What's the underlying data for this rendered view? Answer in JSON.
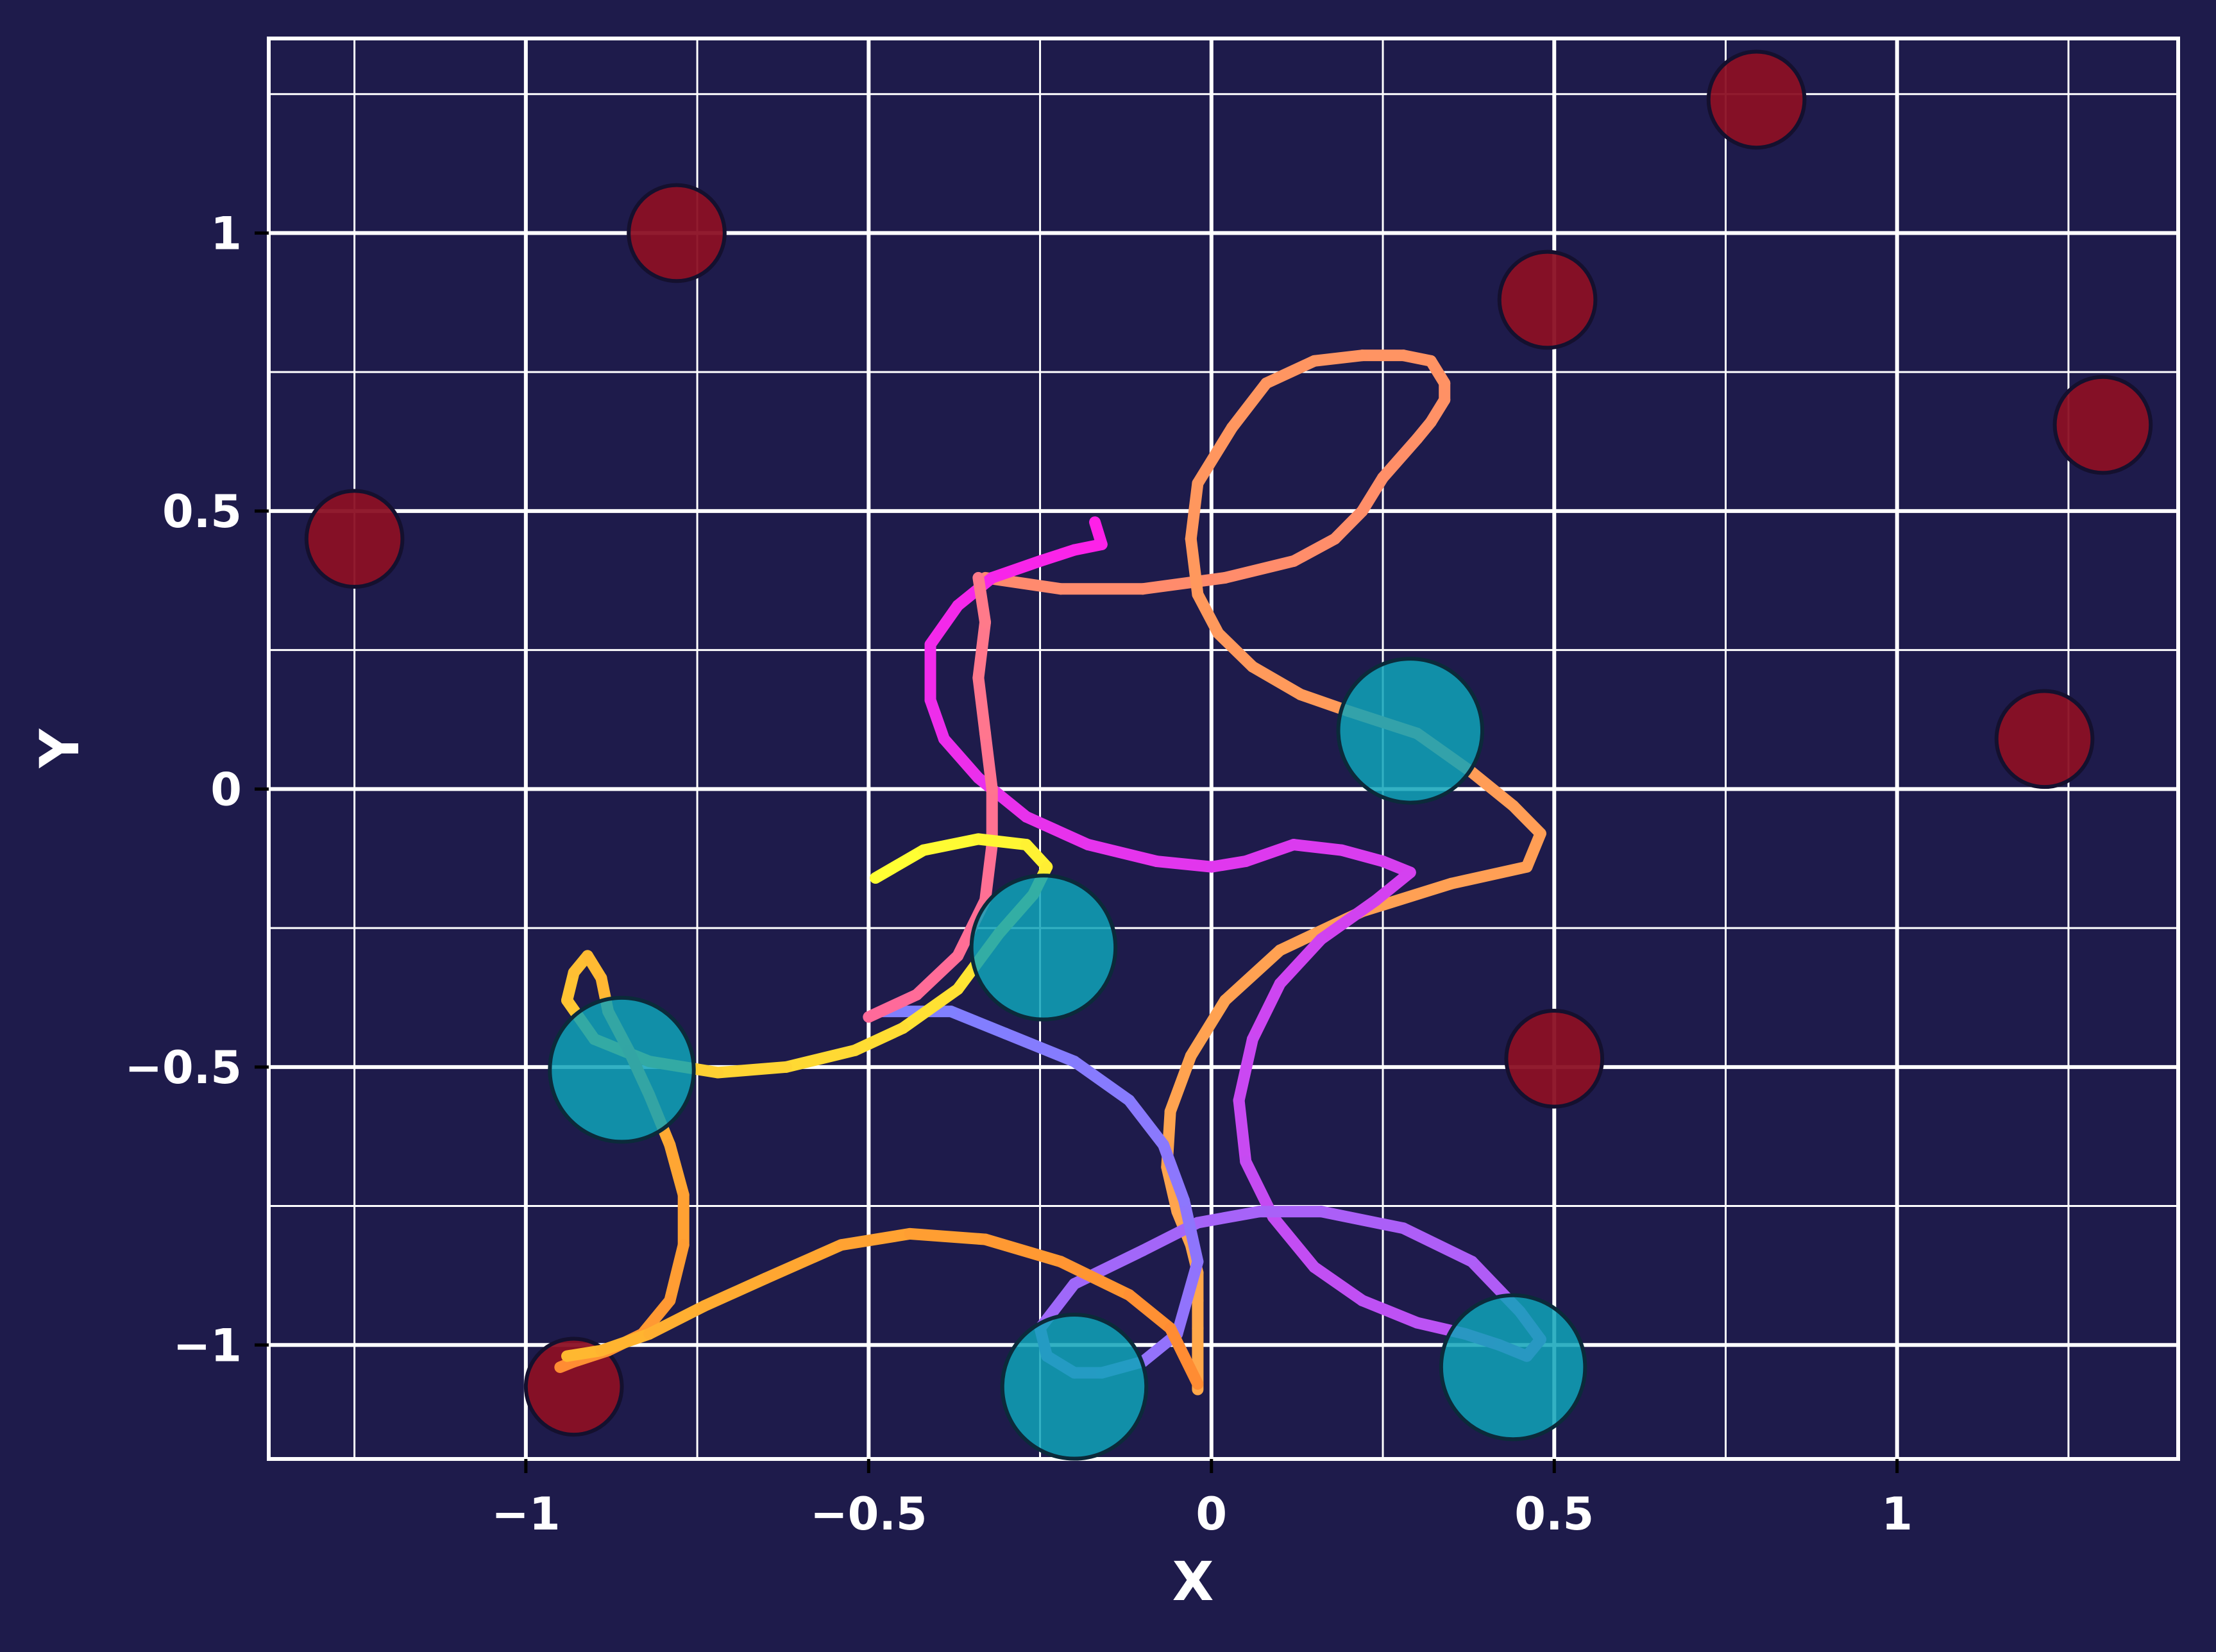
{
  "chart_data": {
    "type": "scatter",
    "title": "",
    "xlabel": "X",
    "ylabel": "Y",
    "xlim": [
      -1.375,
      1.41
    ],
    "ylim": [
      -1.205,
      1.35
    ],
    "xticks": [
      -1,
      -0.5,
      0,
      0.5,
      1
    ],
    "xtick_labels": [
      "−1",
      "−0.5",
      "0",
      "0.5",
      "1"
    ],
    "yticks": [
      -1,
      -0.5,
      0,
      0.5,
      1
    ],
    "ytick_labels": [
      "−1",
      "−0.5",
      "0",
      "0.5",
      "1"
    ],
    "minor_grid_step": 0.25,
    "grid": true,
    "colors": {
      "background": "#1e1b4b",
      "grid": "#ffffff",
      "obstacle": "#8b1024",
      "goal": "#0fa3b8"
    },
    "obstacles": [
      {
        "x": -1.25,
        "y": 0.45,
        "r": 0.07
      },
      {
        "x": -0.78,
        "y": 1.0,
        "r": 0.07
      },
      {
        "x": 0.49,
        "y": 0.88,
        "r": 0.07
      },
      {
        "x": 0.795,
        "y": 1.24,
        "r": 0.07
      },
      {
        "x": 1.3,
        "y": 0.655,
        "r": 0.07
      },
      {
        "x": 1.215,
        "y": 0.09,
        "r": 0.07
      },
      {
        "x": 0.5,
        "y": -0.485,
        "r": 0.07
      },
      {
        "x": -0.93,
        "y": -1.075,
        "r": 0.07
      }
    ],
    "goals": [
      {
        "x": 0.29,
        "y": 0.105,
        "r": 0.105
      },
      {
        "x": -0.245,
        "y": -0.285,
        "r": 0.105
      },
      {
        "x": -0.86,
        "y": -0.505,
        "r": 0.105
      },
      {
        "x": -0.2,
        "y": -1.075,
        "r": 0.105
      },
      {
        "x": 0.44,
        "y": -1.04,
        "r": 0.105
      }
    ],
    "series": [
      {
        "color_start": "#ff8a6e",
        "color_end": "#ffa84a",
        "points": [
          [
            -0.33,
            0.38
          ],
          [
            -0.22,
            0.36
          ],
          [
            -0.1,
            0.36
          ],
          [
            0.02,
            0.38
          ],
          [
            0.12,
            0.41
          ],
          [
            0.18,
            0.45
          ],
          [
            0.22,
            0.5
          ],
          [
            0.25,
            0.56
          ],
          [
            0.3,
            0.63
          ],
          [
            0.32,
            0.66
          ],
          [
            0.34,
            0.7
          ],
          [
            0.34,
            0.73
          ],
          [
            0.32,
            0.77
          ],
          [
            0.28,
            0.78
          ],
          [
            0.22,
            0.78
          ],
          [
            0.15,
            0.77
          ],
          [
            0.08,
            0.73
          ],
          [
            0.03,
            0.65
          ],
          [
            -0.02,
            0.55
          ],
          [
            -0.03,
            0.45
          ],
          [
            -0.02,
            0.35
          ],
          [
            0.01,
            0.28
          ],
          [
            0.06,
            0.22
          ],
          [
            0.13,
            0.17
          ],
          [
            0.2,
            0.14
          ],
          [
            0.3,
            0.1
          ],
          [
            0.38,
            0.03
          ],
          [
            0.44,
            -0.03
          ],
          [
            0.48,
            -0.08
          ],
          [
            0.46,
            -0.14
          ],
          [
            0.35,
            -0.17
          ],
          [
            0.22,
            -0.22
          ],
          [
            0.1,
            -0.29
          ],
          [
            0.02,
            -0.38
          ],
          [
            -0.03,
            -0.48
          ],
          [
            -0.06,
            -0.58
          ],
          [
            -0.065,
            -0.68
          ],
          [
            -0.05,
            -0.76
          ],
          [
            -0.03,
            -0.82
          ],
          [
            -0.02,
            -0.87
          ],
          [
            -0.02,
            -0.92
          ],
          [
            -0.02,
            -0.97
          ],
          [
            -0.02,
            -1.08
          ]
        ]
      },
      {
        "color_start": "#ff20e8",
        "color_end": "#8080ff",
        "points": [
          [
            -0.17,
            0.48
          ],
          [
            -0.16,
            0.44
          ],
          [
            -0.2,
            0.43
          ],
          [
            -0.25,
            0.41
          ],
          [
            -0.32,
            0.38
          ],
          [
            -0.37,
            0.33
          ],
          [
            -0.41,
            0.26
          ],
          [
            -0.41,
            0.16
          ],
          [
            -0.39,
            0.09
          ],
          [
            -0.34,
            0.02
          ],
          [
            -0.27,
            -0.05
          ],
          [
            -0.18,
            -0.1
          ],
          [
            -0.08,
            -0.13
          ],
          [
            0.0,
            -0.14
          ],
          [
            0.05,
            -0.13
          ],
          [
            0.12,
            -0.1
          ],
          [
            0.19,
            -0.11
          ],
          [
            0.25,
            -0.13
          ],
          [
            0.29,
            -0.15
          ],
          [
            0.24,
            -0.2
          ],
          [
            0.16,
            -0.27
          ],
          [
            0.1,
            -0.35
          ],
          [
            0.06,
            -0.45
          ],
          [
            0.04,
            -0.56
          ],
          [
            0.05,
            -0.67
          ],
          [
            0.09,
            -0.77
          ],
          [
            0.15,
            -0.86
          ],
          [
            0.22,
            -0.92
          ],
          [
            0.3,
            -0.96
          ],
          [
            0.37,
            -0.98
          ],
          [
            0.42,
            -1.0
          ],
          [
            0.46,
            -1.02
          ],
          [
            0.48,
            -0.99
          ],
          [
            0.45,
            -0.94
          ],
          [
            0.38,
            -0.85
          ],
          [
            0.28,
            -0.79
          ],
          [
            0.16,
            -0.76
          ],
          [
            0.07,
            -0.76
          ],
          [
            -0.02,
            -0.78
          ],
          [
            -0.1,
            -0.83
          ],
          [
            -0.2,
            -0.89
          ],
          [
            -0.25,
            -0.97
          ],
          [
            -0.24,
            -1.02
          ],
          [
            -0.2,
            -1.05
          ],
          [
            -0.16,
            -1.05
          ],
          [
            -0.1,
            -1.03
          ],
          [
            -0.05,
            -0.98
          ],
          [
            -0.02,
            -0.85
          ],
          [
            -0.04,
            -0.74
          ],
          [
            -0.07,
            -0.64
          ],
          [
            -0.12,
            -0.56
          ],
          [
            -0.2,
            -0.49
          ],
          [
            -0.3,
            -0.44
          ],
          [
            -0.38,
            -0.4
          ],
          [
            -0.48,
            -0.4
          ]
        ]
      },
      {
        "color_start": "#ff6a9a",
        "color_end": "#ff7a8a",
        "points": [
          [
            -0.5,
            -0.41
          ],
          [
            -0.43,
            -0.37
          ],
          [
            -0.37,
            -0.3
          ],
          [
            -0.33,
            -0.2
          ],
          [
            -0.32,
            -0.1
          ],
          [
            -0.32,
            0.0
          ],
          [
            -0.33,
            0.1
          ],
          [
            -0.34,
            0.2
          ],
          [
            -0.33,
            0.3
          ],
          [
            -0.34,
            0.38
          ]
        ]
      },
      {
        "color_start": "#ffff33",
        "color_end": "#ff8c33",
        "points": [
          [
            -0.49,
            -0.16
          ],
          [
            -0.42,
            -0.11
          ],
          [
            -0.34,
            -0.09
          ],
          [
            -0.27,
            -0.1
          ],
          [
            -0.24,
            -0.14
          ],
          [
            -0.26,
            -0.19
          ],
          [
            -0.31,
            -0.26
          ],
          [
            -0.37,
            -0.36
          ],
          [
            -0.45,
            -0.43
          ],
          [
            -0.52,
            -0.47
          ],
          [
            -0.62,
            -0.5
          ],
          [
            -0.72,
            -0.51
          ],
          [
            -0.82,
            -0.49
          ],
          [
            -0.9,
            -0.45
          ],
          [
            -0.94,
            -0.38
          ],
          [
            -0.93,
            -0.33
          ],
          [
            -0.91,
            -0.3
          ],
          [
            -0.89,
            -0.34
          ],
          [
            -0.88,
            -0.4
          ],
          [
            -0.85,
            -0.47
          ],
          [
            -0.82,
            -0.55
          ],
          [
            -0.79,
            -0.64
          ],
          [
            -0.77,
            -0.73
          ],
          [
            -0.77,
            -0.82
          ],
          [
            -0.79,
            -0.92
          ],
          [
            -0.83,
            -0.98
          ],
          [
            -0.88,
            -1.01
          ],
          [
            -0.93,
            -1.03
          ],
          [
            -0.95,
            -1.04
          ]
        ]
      },
      {
        "color_start": "#ffb830",
        "color_end": "#ff8c33",
        "points": [
          [
            -0.94,
            -1.02
          ],
          [
            -0.89,
            -1.01
          ],
          [
            -0.82,
            -0.98
          ],
          [
            -0.74,
            -0.93
          ],
          [
            -0.65,
            -0.88
          ],
          [
            -0.54,
            -0.82
          ],
          [
            -0.44,
            -0.8
          ],
          [
            -0.33,
            -0.81
          ],
          [
            -0.22,
            -0.85
          ],
          [
            -0.12,
            -0.91
          ],
          [
            -0.06,
            -0.97
          ],
          [
            -0.02,
            -1.07
          ]
        ]
      }
    ]
  }
}
